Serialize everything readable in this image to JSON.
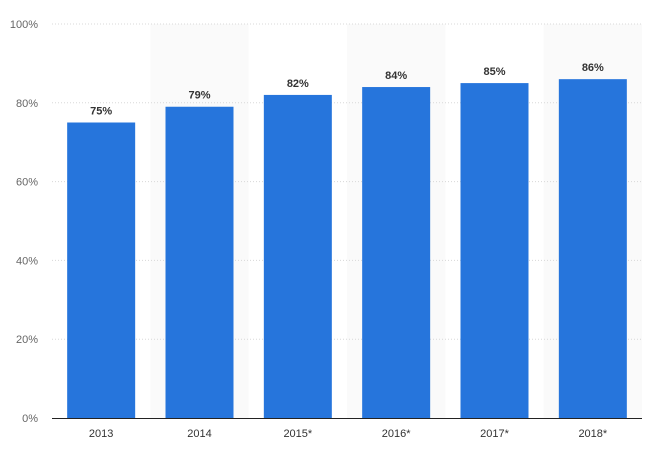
{
  "colors": {
    "bar": "#2675dc",
    "band": "#fafafa",
    "grid": "#d8d8d8",
    "axis": "#222222",
    "tick_text": "#666666"
  },
  "chart_data": {
    "type": "bar",
    "categories": [
      "2013",
      "2014",
      "2015*",
      "2016*",
      "2017*",
      "2018*"
    ],
    "values": [
      75,
      79,
      82,
      84,
      85,
      86
    ],
    "value_labels": [
      "75%",
      "79%",
      "82%",
      "84%",
      "85%",
      "86%"
    ],
    "yticks": [
      "0%",
      "20%",
      "40%",
      "60%",
      "80%",
      "100%"
    ],
    "ytick_values": [
      0,
      20,
      40,
      60,
      80,
      100
    ],
    "ylim": [
      0,
      100
    ],
    "alternating_background_bands": true,
    "grid": true,
    "legend": "none"
  }
}
